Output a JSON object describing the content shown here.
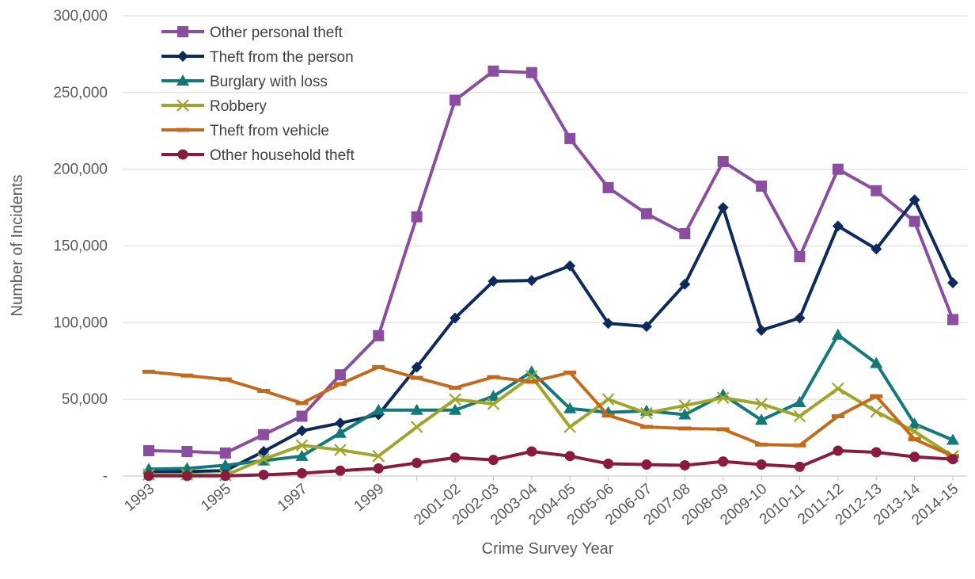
{
  "chart_data": {
    "type": "line",
    "title": "",
    "xlabel": "Crime Survey Year",
    "ylabel": "Number of Incidents",
    "ylim": [
      0,
      300000
    ],
    "yticks": [
      0,
      50000,
      100000,
      150000,
      200000,
      250000,
      300000
    ],
    "ytick_labels": [
      "-",
      "50,000",
      "100,000",
      "150,000",
      "200,000",
      "250,000",
      "300,000"
    ],
    "grid": "horizontal",
    "legend_position": "top-left",
    "x_tick_labels": [
      "1993",
      "",
      "1995",
      "",
      "1997",
      "",
      "1999",
      "",
      "2001-02",
      "2002-03",
      "2003-04",
      "2004-05",
      "2005-06",
      "2006-07",
      "2007-08",
      "2008-09",
      "2009-10",
      "2010-11",
      "2011-12",
      "2012-13",
      "2013-14",
      "2014-15"
    ],
    "series": [
      {
        "name": "Other personal theft",
        "color": "#8B4DA0",
        "marker": "square",
        "values": [
          16500,
          16000,
          15000,
          27000,
          39000,
          66000,
          91500,
          169000,
          245000,
          264000,
          263000,
          220000,
          188000,
          171000,
          158000,
          205000,
          189000,
          143000,
          200000,
          186000,
          166000,
          102000
        ]
      },
      {
        "name": "Theft from the person",
        "color": "#0D2A5C",
        "marker": "diamond",
        "values": [
          3000,
          3000,
          3500,
          16000,
          29500,
          34500,
          40000,
          71000,
          103000,
          127000,
          127500,
          137000,
          99500,
          97500,
          125000,
          175000,
          95000,
          103000,
          163000,
          148000,
          180000,
          126000
        ]
      },
      {
        "name": "Burglary with loss",
        "color": "#12797A",
        "marker": "triangle",
        "values": [
          4500,
          5000,
          7000,
          10000,
          13000,
          28000,
          43000,
          43000,
          43000,
          52000,
          68000,
          44000,
          41500,
          42500,
          40000,
          53000,
          36500,
          48000,
          92000,
          73500,
          34000,
          23500
        ]
      },
      {
        "name": "Robbery",
        "color": "#9FA52A",
        "marker": "x",
        "values": [
          1000,
          1000,
          500,
          11000,
          20000,
          17000,
          13000,
          32000,
          50000,
          47000,
          65000,
          32000,
          50000,
          41000,
          46000,
          51000,
          47000,
          39000,
          57000,
          42000,
          29000,
          13000
        ]
      },
      {
        "name": "Theft from vehicle",
        "color": "#C46A1C",
        "marker": "dash",
        "values": [
          68000,
          65500,
          63000,
          55500,
          47500,
          60000,
          71000,
          64000,
          57500,
          64500,
          61500,
          67500,
          39500,
          32000,
          31000,
          30500,
          20500,
          20000,
          39000,
          52000,
          24000,
          13000
        ]
      },
      {
        "name": "Other household theft",
        "color": "#8A1B3E",
        "marker": "circle",
        "values": [
          200,
          100,
          100,
          800,
          1800,
          3500,
          5000,
          8500,
          12000,
          10500,
          16000,
          13000,
          8000,
          7500,
          7000,
          9500,
          7500,
          6000,
          16500,
          15500,
          12500,
          11000
        ]
      }
    ]
  }
}
